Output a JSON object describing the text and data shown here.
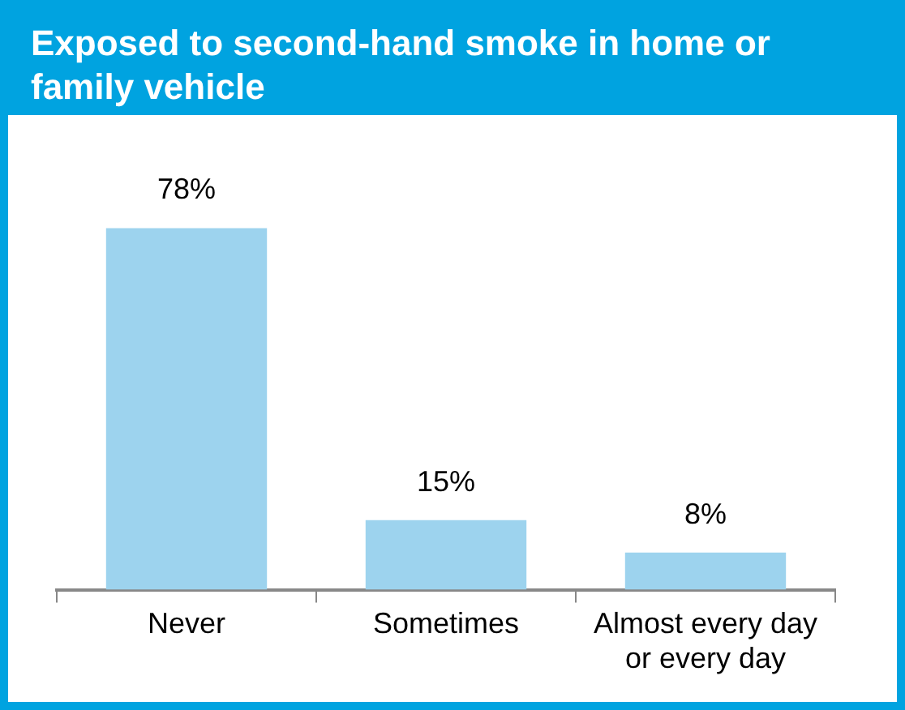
{
  "chart_data": {
    "type": "bar",
    "title": "Exposed to second-hand smoke in home or family vehicle",
    "categories": [
      "Never",
      "Sometimes",
      "Almost every day or every day"
    ],
    "values": [
      78,
      15,
      8
    ],
    "value_labels": [
      "78%",
      "15%",
      "8%"
    ],
    "color": "#9dd3ee",
    "grid": false,
    "legend": false
  }
}
